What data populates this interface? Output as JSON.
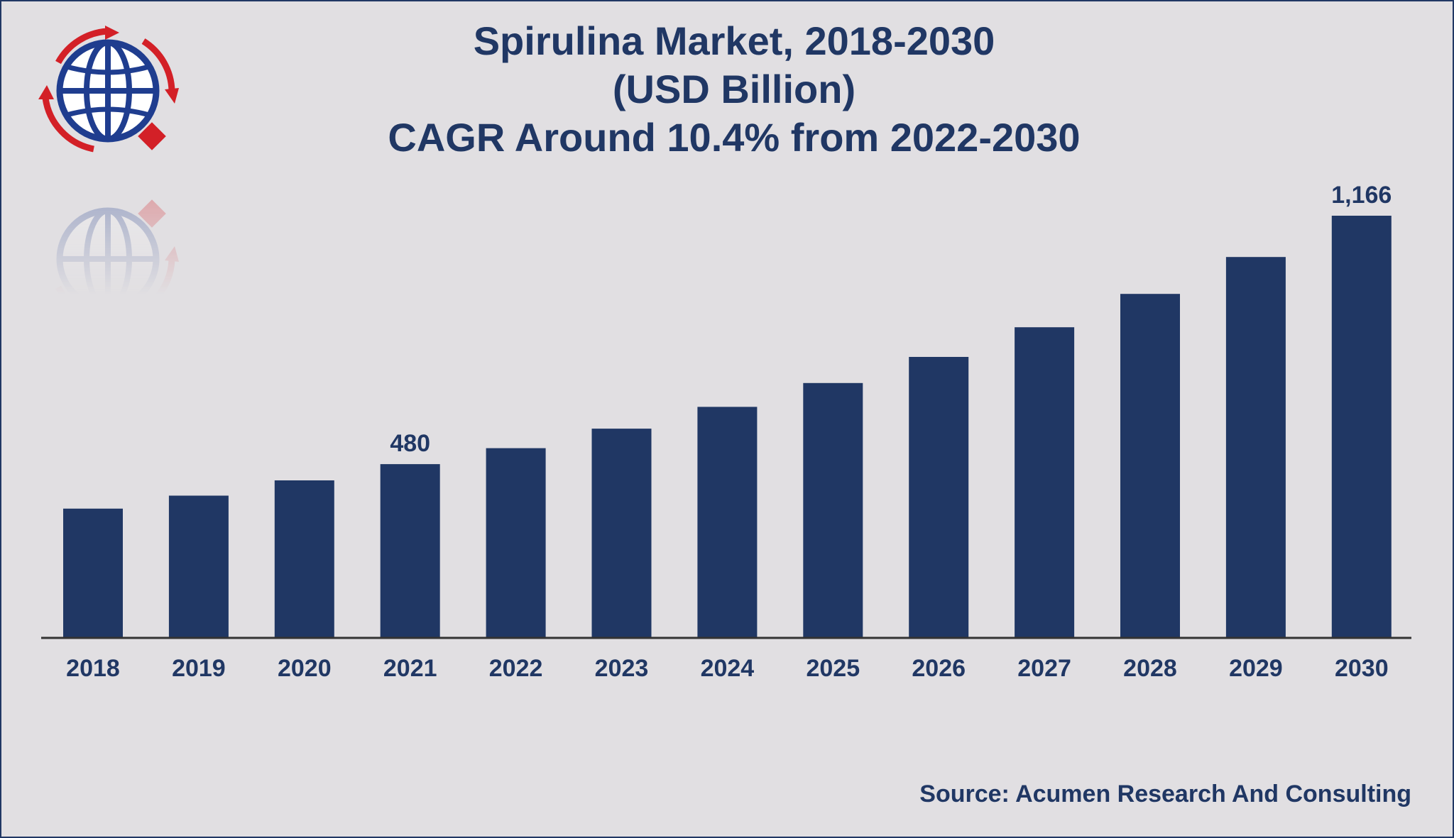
{
  "colors": {
    "background": "#e1dfe2",
    "bar": "#203764",
    "text": "#203764",
    "axis": "#333333",
    "logo_blue": "#1f3d8f",
    "logo_red": "#d32027"
  },
  "logo": {
    "icon": "globe-logo-icon"
  },
  "source": "Source: Acumen Research And Consulting",
  "chart_data": {
    "type": "bar",
    "title": "Spirulina Market, 2018-2030",
    "title_lines": [
      "Spirulina Market, 2018-2030",
      "(USD Billion)",
      "CAGR Around 10.4% from 2022-2030"
    ],
    "xlabel": "",
    "ylabel": "",
    "categories": [
      "2018",
      "2019",
      "2020",
      "2021",
      "2022",
      "2023",
      "2024",
      "2025",
      "2026",
      "2027",
      "2028",
      "2029",
      "2030"
    ],
    "series": [
      {
        "values": [
          357,
          393,
          435,
          480,
          524,
          578,
          638,
          704,
          776,
          858,
          950,
          1052,
          1166
        ]
      }
    ],
    "data_labels": [
      {
        "category": "2021",
        "text": "480"
      },
      {
        "category": "2030",
        "text": "1,166"
      }
    ],
    "ylim": [
      0,
      1166
    ],
    "grid": false,
    "legend": "none"
  }
}
